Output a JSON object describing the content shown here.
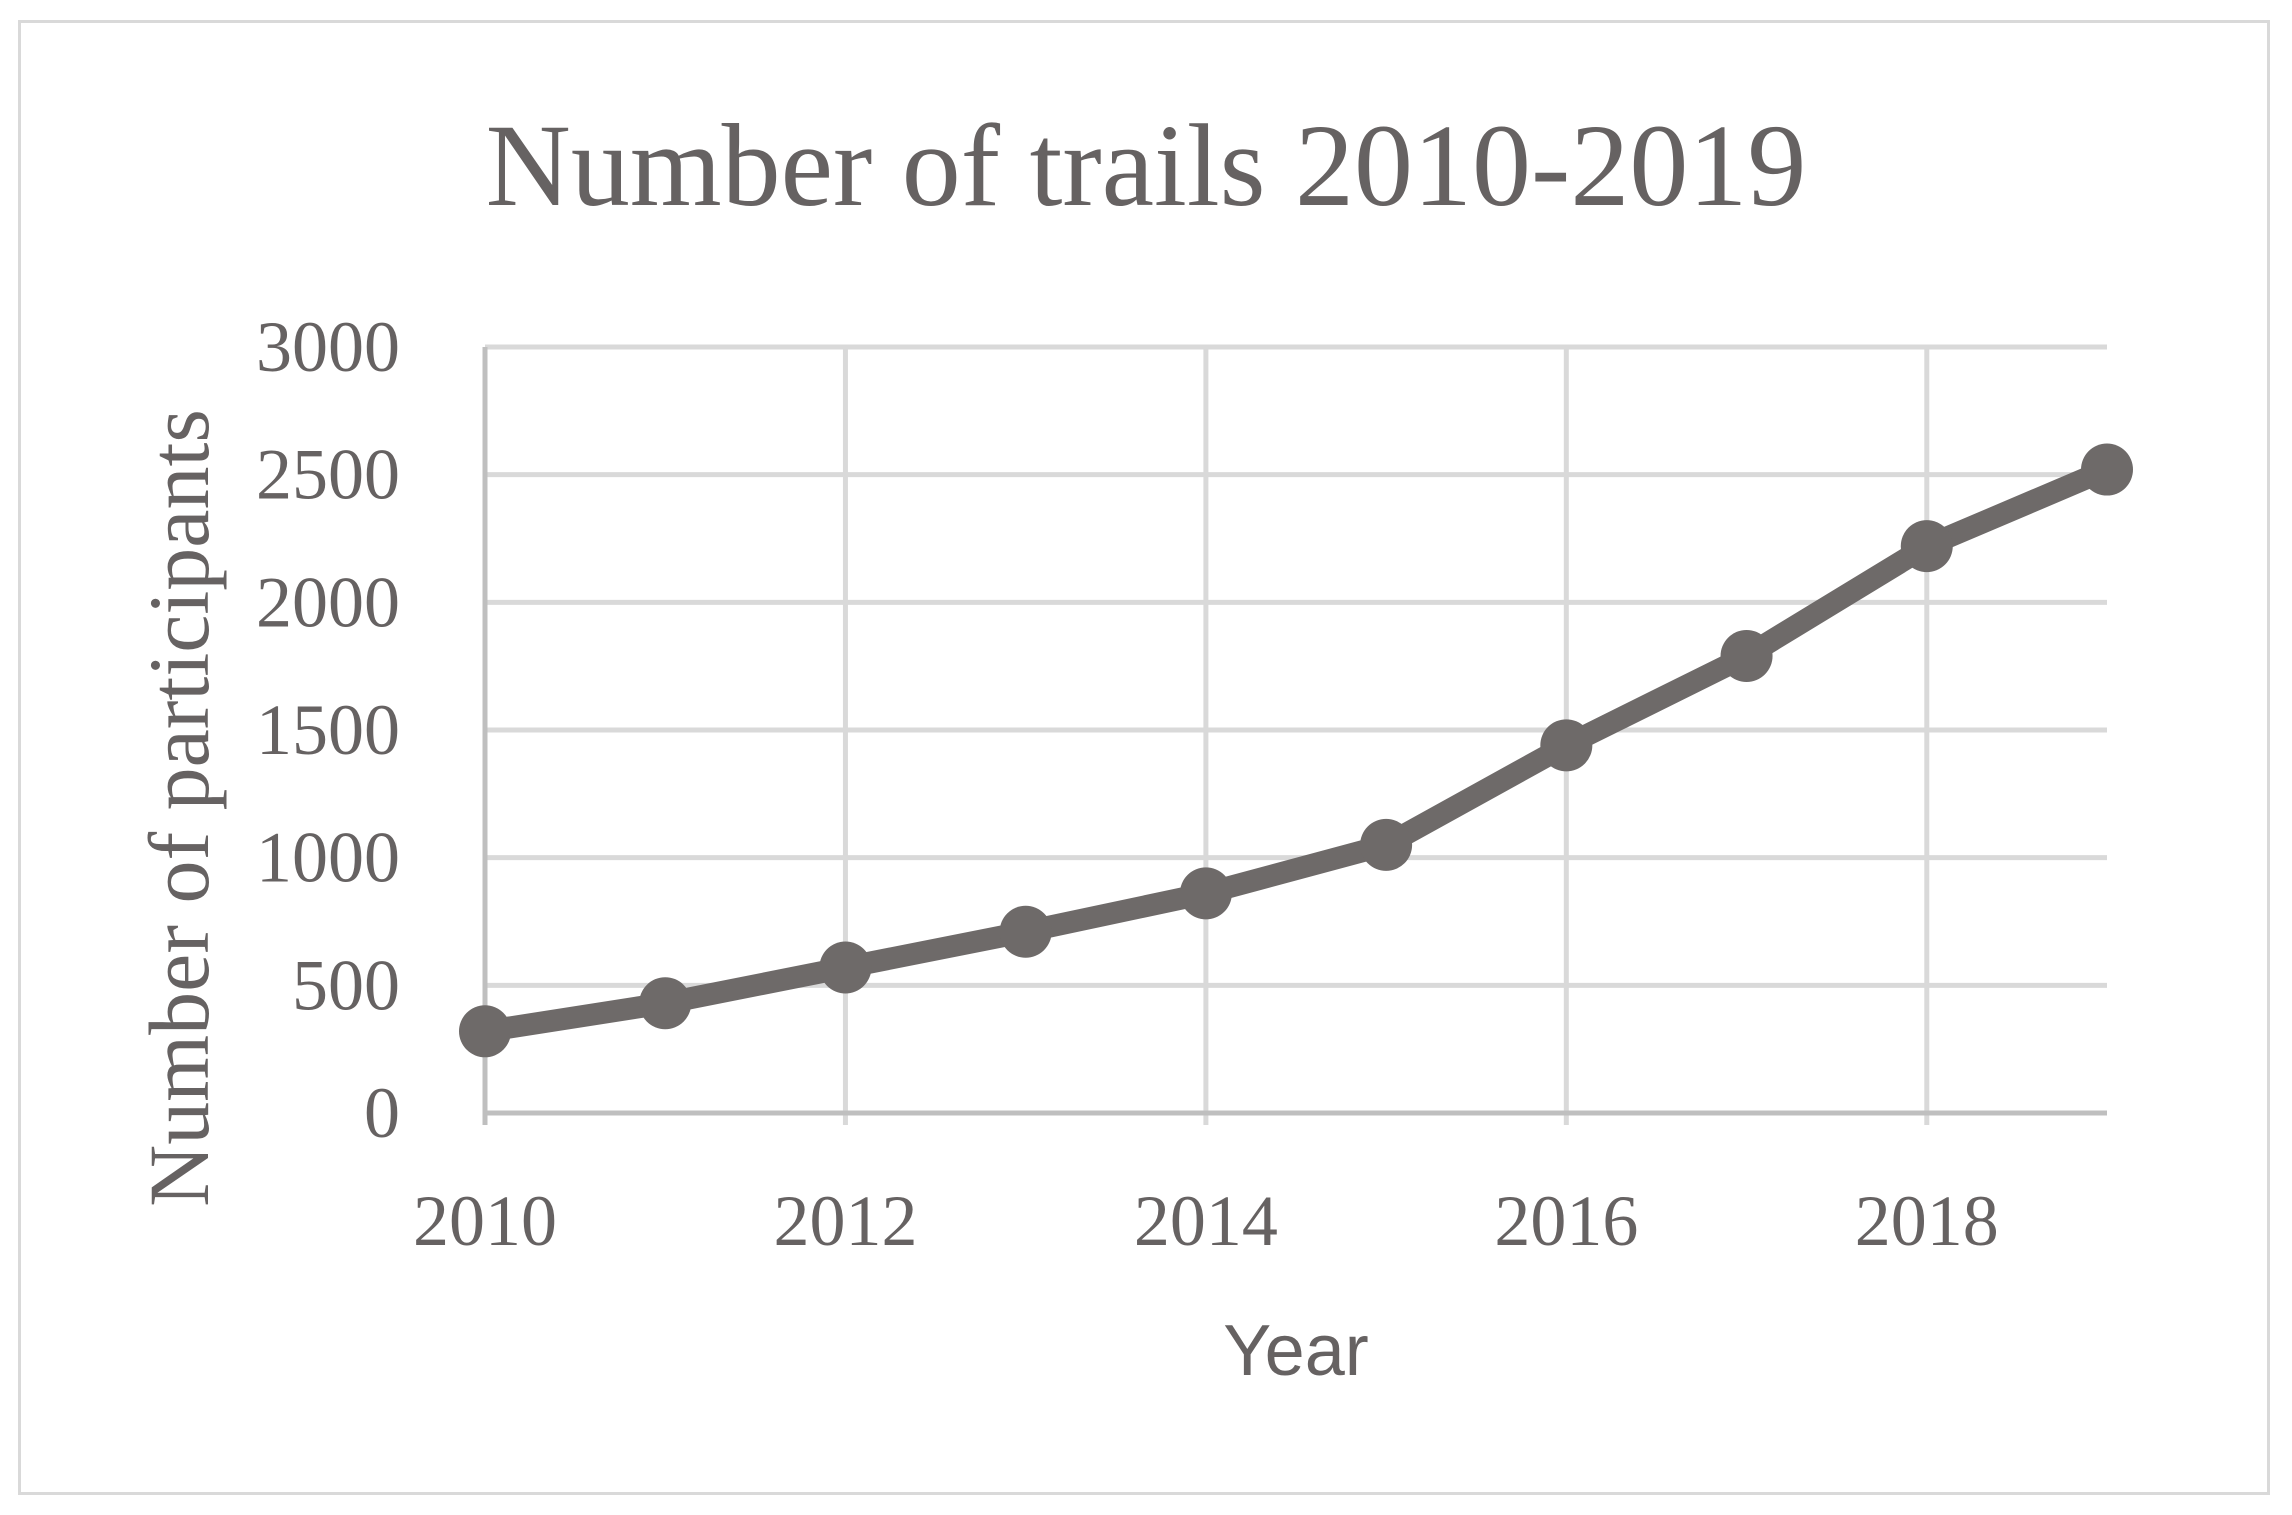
{
  "chart_data": {
    "type": "line",
    "title": "Number of trails 2010-2019",
    "xlabel": "Year",
    "ylabel": "Number of participants",
    "x": [
      2010,
      2011,
      2012,
      2013,
      2014,
      2015,
      2016,
      2017,
      2018,
      2019
    ],
    "series": [
      {
        "values": [
          320,
          430,
          570,
          710,
          860,
          1050,
          1440,
          1790,
          2220,
          2520
        ]
      }
    ],
    "xlim": [
      2010,
      2019
    ],
    "ylim": [
      0,
      3000
    ],
    "x_ticks": [
      "2010",
      "2012",
      "2014",
      "2016",
      "2018"
    ],
    "y_ticks": [
      "0",
      "500",
      "1000",
      "1500",
      "2000",
      "2500",
      "3000"
    ],
    "grid": true,
    "legend": "none",
    "colors": {
      "line": "#6e6a69",
      "grid": "#d9d9d9",
      "text": "#666262",
      "frame": "#d9d9d9"
    }
  }
}
